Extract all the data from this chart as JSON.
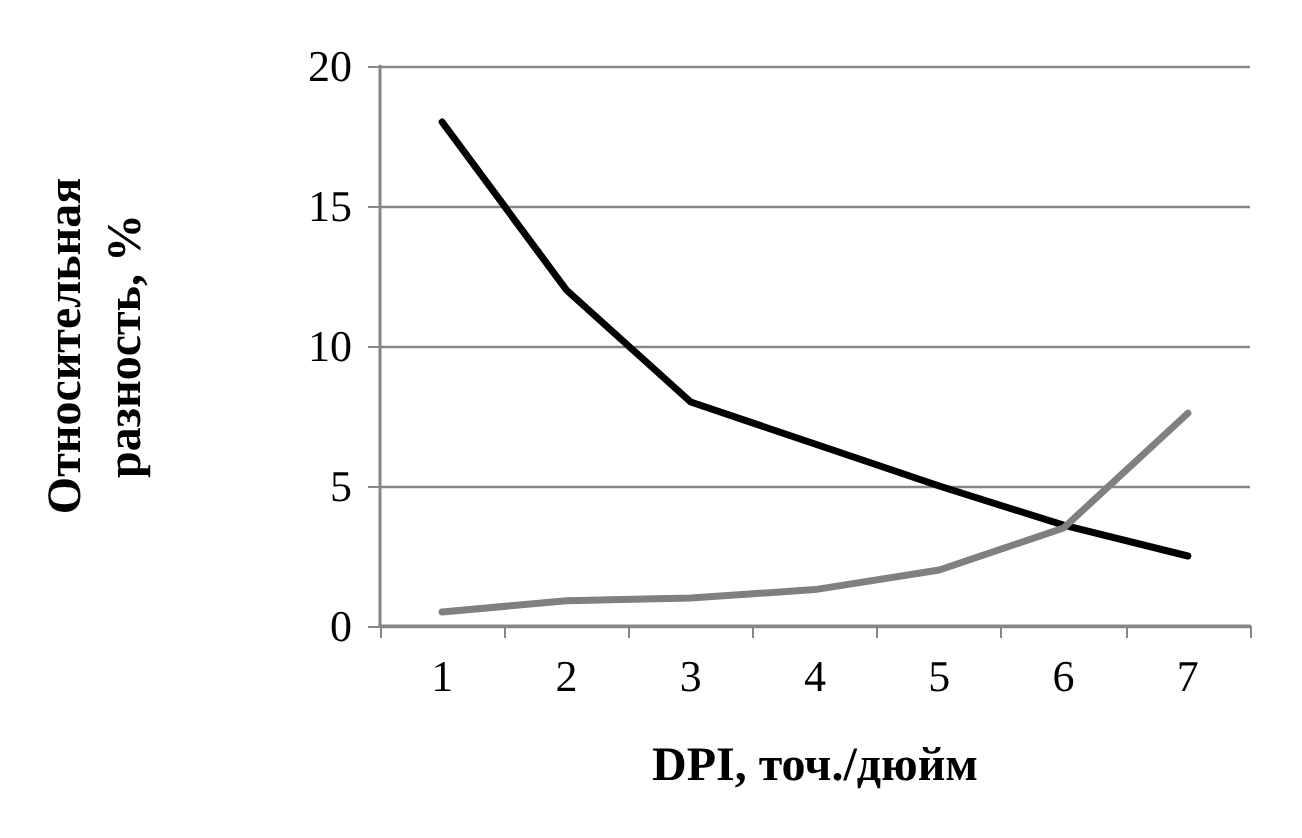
{
  "chart_data": {
    "type": "line",
    "xlabel": "DPI, точ./дюйм",
    "ylabel": "Относительная\nразность, %",
    "categories": [
      "1",
      "2",
      "3",
      "4",
      "5",
      "6",
      "7"
    ],
    "series": [
      {
        "color": "#000000",
        "values": [
          18,
          12,
          8,
          6.5,
          5,
          3.6,
          2.5
        ]
      },
      {
        "color": "#808080",
        "values": [
          0.5,
          0.9,
          1.0,
          1.3,
          2.0,
          3.5,
          7.6
        ]
      }
    ],
    "ylim": [
      0,
      20
    ],
    "yticks": [
      0,
      5,
      10,
      15,
      20
    ],
    "grid": "y",
    "marker": "none",
    "line_style": "solid"
  }
}
